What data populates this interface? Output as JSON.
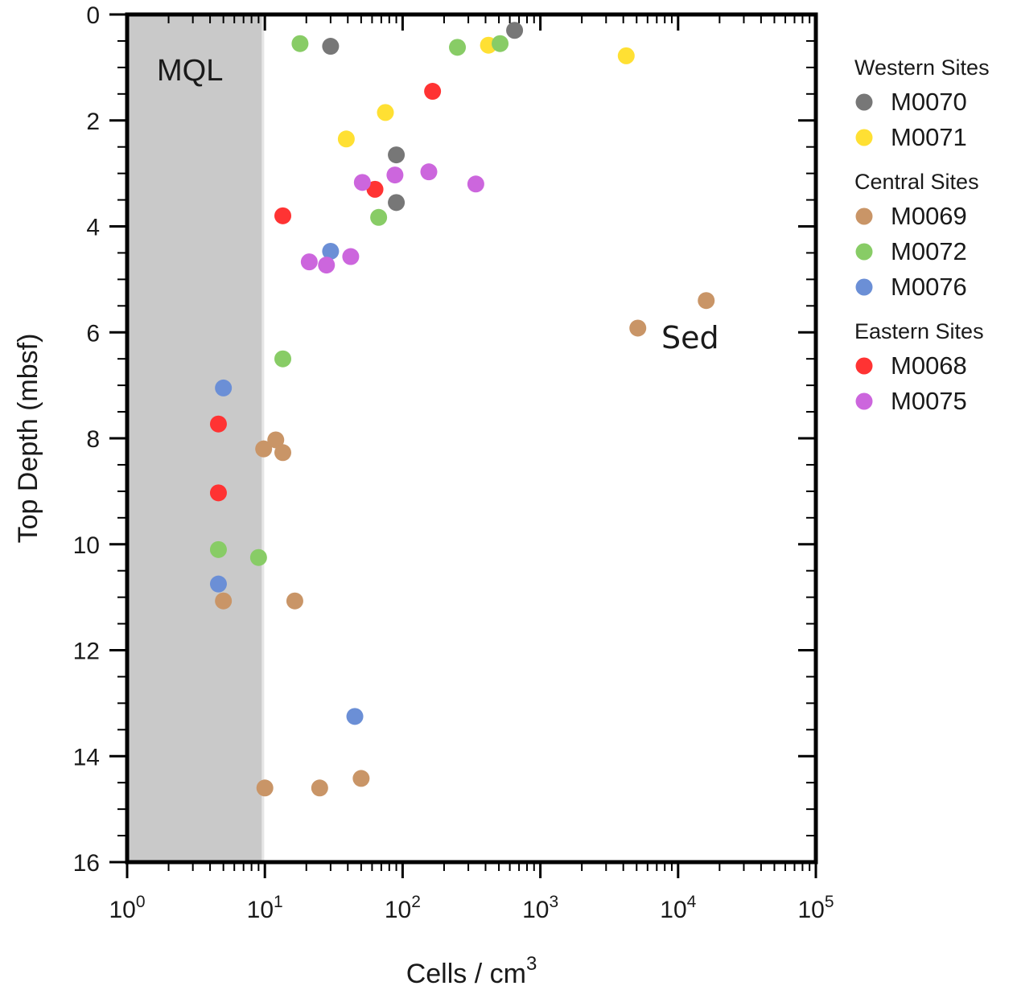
{
  "chart_data": {
    "type": "scatter",
    "xlabel": "Cells / cm",
    "xlabel_superscript": "3",
    "ylabel": "Top Depth (mbsf)",
    "x_scale": "log",
    "xlim": [
      1,
      100000
    ],
    "ylim": [
      0,
      16
    ],
    "y_inverted": true,
    "x_ticks": [
      {
        "base": "10",
        "exp": "0"
      },
      {
        "base": "10",
        "exp": "1"
      },
      {
        "base": "10",
        "exp": "2"
      },
      {
        "base": "10",
        "exp": "3"
      },
      {
        "base": "10",
        "exp": "4"
      },
      {
        "base": "10",
        "exp": "5"
      }
    ],
    "y_ticks": [
      "0",
      "2",
      "4",
      "6",
      "8",
      "10",
      "12",
      "14",
      "16"
    ],
    "grid": false,
    "legend_position": "right",
    "shaded_region": {
      "label": "MQL",
      "x_range": [
        1,
        9.5
      ],
      "color": "#c9c9c9"
    },
    "annotations": [
      {
        "text": "Sed",
        "x": 9000,
        "y": 6.05
      }
    ],
    "legend_groups": [
      {
        "title": "Western Sites",
        "series": [
          "M0070",
          "M0071"
        ]
      },
      {
        "title": "Central Sites",
        "series": [
          "M0069",
          "M0072",
          "M0076"
        ]
      },
      {
        "title": "Eastern Sites",
        "series": [
          "M0068",
          "M0075"
        ]
      }
    ],
    "series": [
      {
        "name": "M0070",
        "color": "#777777",
        "points": [
          {
            "x": 650,
            "y": 0.3
          },
          {
            "x": 30,
            "y": 0.6
          },
          {
            "x": 90,
            "y": 2.65
          },
          {
            "x": 90,
            "y": 3.55
          }
        ]
      },
      {
        "name": "M0071",
        "color": "#ffe033",
        "points": [
          {
            "x": 420,
            "y": 0.58
          },
          {
            "x": 4200,
            "y": 0.78
          },
          {
            "x": 75,
            "y": 1.85
          },
          {
            "x": 39,
            "y": 2.35
          }
        ]
      },
      {
        "name": "M0069",
        "color": "#c99567",
        "points": [
          {
            "x": 16000,
            "y": 5.4
          },
          {
            "x": 5100,
            "y": 5.92
          },
          {
            "x": 12,
            "y": 8.03
          },
          {
            "x": 9.8,
            "y": 8.2
          },
          {
            "x": 13.5,
            "y": 8.27
          },
          {
            "x": 5.0,
            "y": 11.07
          },
          {
            "x": 16.5,
            "y": 11.07
          },
          {
            "x": 50,
            "y": 14.42
          },
          {
            "x": 10,
            "y": 14.6
          },
          {
            "x": 25,
            "y": 14.6
          }
        ]
      },
      {
        "name": "M0072",
        "color": "#88cc66",
        "points": [
          {
            "x": 18,
            "y": 0.55
          },
          {
            "x": 250,
            "y": 0.62
          },
          {
            "x": 510,
            "y": 0.55
          },
          {
            "x": 67,
            "y": 3.83
          },
          {
            "x": 13.5,
            "y": 6.5
          },
          {
            "x": 4.6,
            "y": 10.1
          },
          {
            "x": 9.0,
            "y": 10.25
          }
        ]
      },
      {
        "name": "M0076",
        "color": "#6b8fd6",
        "points": [
          {
            "x": 30,
            "y": 4.47
          },
          {
            "x": 5.0,
            "y": 7.05
          },
          {
            "x": 4.6,
            "y": 10.75
          },
          {
            "x": 45,
            "y": 13.25
          }
        ]
      },
      {
        "name": "M0068",
        "color": "#ff3333",
        "points": [
          {
            "x": 165,
            "y": 1.45
          },
          {
            "x": 63,
            "y": 3.3
          },
          {
            "x": 13.5,
            "y": 3.8
          },
          {
            "x": 4.6,
            "y": 7.73
          },
          {
            "x": 4.6,
            "y": 9.03
          }
        ]
      },
      {
        "name": "M0075",
        "color": "#cc66dd",
        "points": [
          {
            "x": 155,
            "y": 2.97
          },
          {
            "x": 88,
            "y": 3.03
          },
          {
            "x": 51,
            "y": 3.17
          },
          {
            "x": 340,
            "y": 3.2
          },
          {
            "x": 42,
            "y": 4.57
          },
          {
            "x": 21,
            "y": 4.67
          },
          {
            "x": 28,
            "y": 4.73
          }
        ]
      }
    ]
  }
}
